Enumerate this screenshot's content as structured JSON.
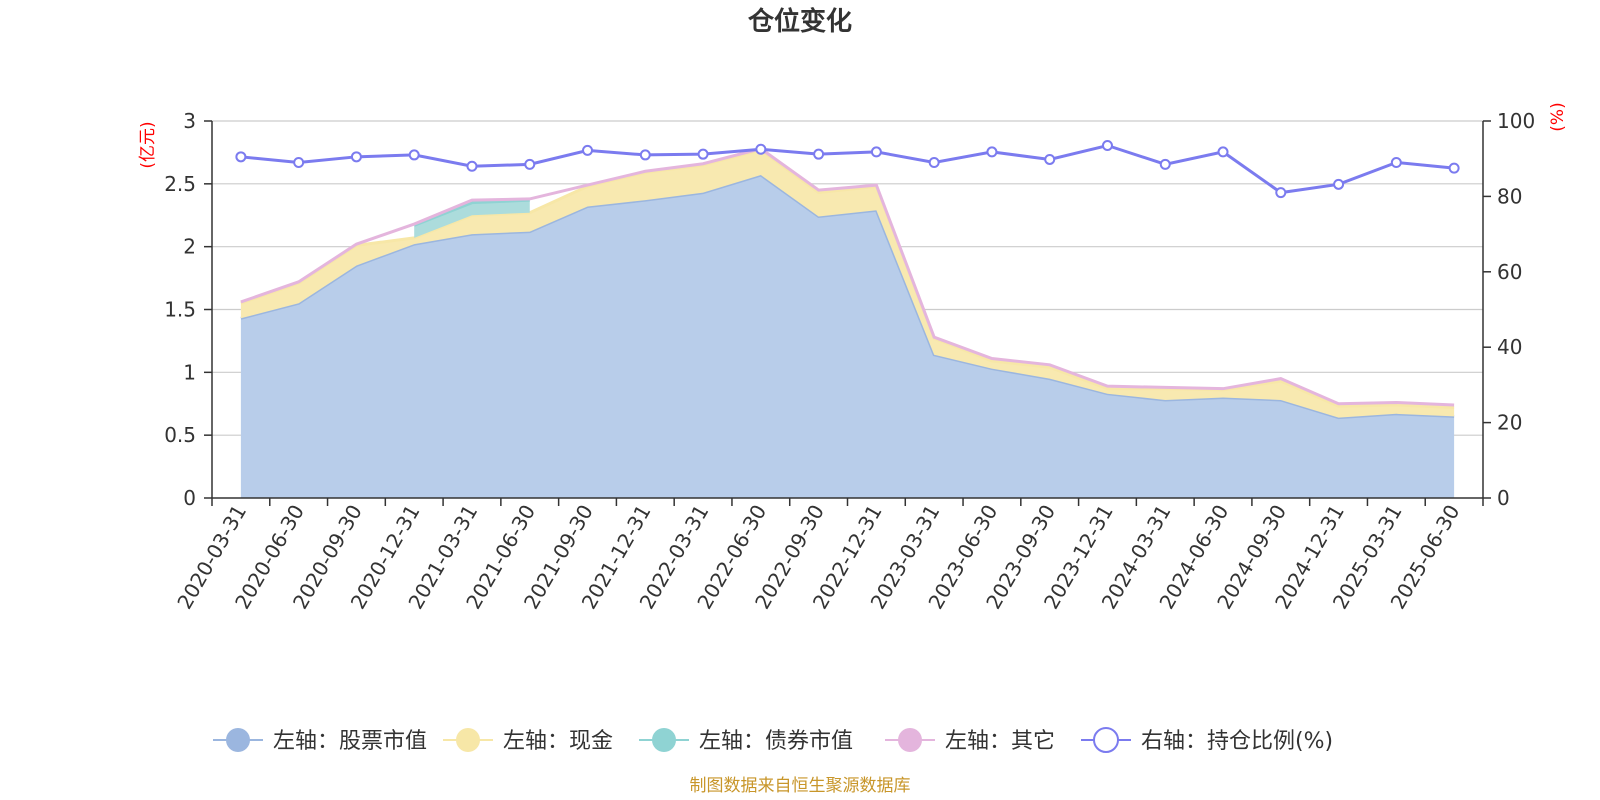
{
  "chart_data": {
    "type": "area",
    "title": "仓位变化",
    "left_axis": {
      "unit_label": "(亿元)",
      "ylim": [
        0,
        3
      ],
      "ticks": [
        "0",
        "0.5",
        "1",
        "1.5",
        "2",
        "2.5",
        "3"
      ]
    },
    "right_axis": {
      "unit_label": "(%)",
      "ylim": [
        0,
        100
      ],
      "ticks": [
        "0",
        "20",
        "40",
        "60",
        "80",
        "100"
      ]
    },
    "categories": [
      "2020-03-31",
      "2020-06-30",
      "2020-09-30",
      "2020-12-31",
      "2021-03-31",
      "2021-06-30",
      "2021-09-30",
      "2021-12-31",
      "2022-03-31",
      "2022-06-30",
      "2022-09-30",
      "2022-12-31",
      "2023-03-31",
      "2023-06-30",
      "2023-09-30",
      "2023-12-31",
      "2024-03-31",
      "2024-06-30",
      "2024-09-30",
      "2024-12-31",
      "2025-03-31",
      "2025-06-30"
    ],
    "series": [
      {
        "name": "左轴：股票市值",
        "axis": "left",
        "stack": true,
        "color": "#9bb6df",
        "fill": "#b8cdea",
        "values": [
          1.43,
          1.55,
          1.85,
          2.02,
          2.1,
          2.12,
          2.32,
          2.37,
          2.43,
          2.57,
          2.24,
          2.29,
          1.14,
          1.03,
          0.95,
          0.83,
          0.78,
          0.8,
          0.78,
          0.64,
          0.67,
          0.65
        ]
      },
      {
        "name": "左轴：现金",
        "axis": "left",
        "stack": true,
        "color": "#f7e7a7",
        "fill": "#f8e9b0",
        "values": [
          0.12,
          0.16,
          0.16,
          0.05,
          0.15,
          0.15,
          0.16,
          0.22,
          0.22,
          0.2,
          0.19,
          0.19,
          0.13,
          0.06,
          0.09,
          0.04,
          0.09,
          0.06,
          0.15,
          0.09,
          0.07,
          0.07
        ]
      },
      {
        "name": "左轴：债券市值",
        "axis": "left",
        "stack": true,
        "color": "#8fd3d3",
        "fill": "#acdcdc",
        "values": [
          0,
          0,
          0,
          0.1,
          0.1,
          0.1,
          0,
          0,
          0,
          0,
          0,
          0,
          0,
          0,
          0,
          0,
          0,
          0,
          0,
          0,
          0,
          0
        ]
      },
      {
        "name": "左轴：其它",
        "axis": "left",
        "stack": true,
        "color": "#e4b5dd",
        "fill": "#ffffff",
        "values": [
          0.01,
          0.01,
          0.01,
          0.01,
          0.02,
          0.01,
          0.01,
          0.01,
          0.01,
          0.01,
          0.02,
          0.01,
          0.01,
          0.02,
          0.02,
          0.02,
          0.01,
          0.01,
          0.02,
          0.02,
          0.02,
          0.02
        ]
      },
      {
        "name": "右轴：持仓比例(%)",
        "axis": "right",
        "type": "line",
        "color": "#7b7bef",
        "values": [
          90.5,
          89,
          90.5,
          91,
          88,
          88.5,
          92.2,
          91,
          91.2,
          92.5,
          91.2,
          91.8,
          89,
          91.8,
          89.8,
          93.5,
          88.5,
          91.8,
          81,
          83.2,
          89,
          87.5
        ]
      }
    ],
    "legend_position": "bottom",
    "grid": true
  },
  "source_note": "制图数据来自恒生聚源数据库"
}
